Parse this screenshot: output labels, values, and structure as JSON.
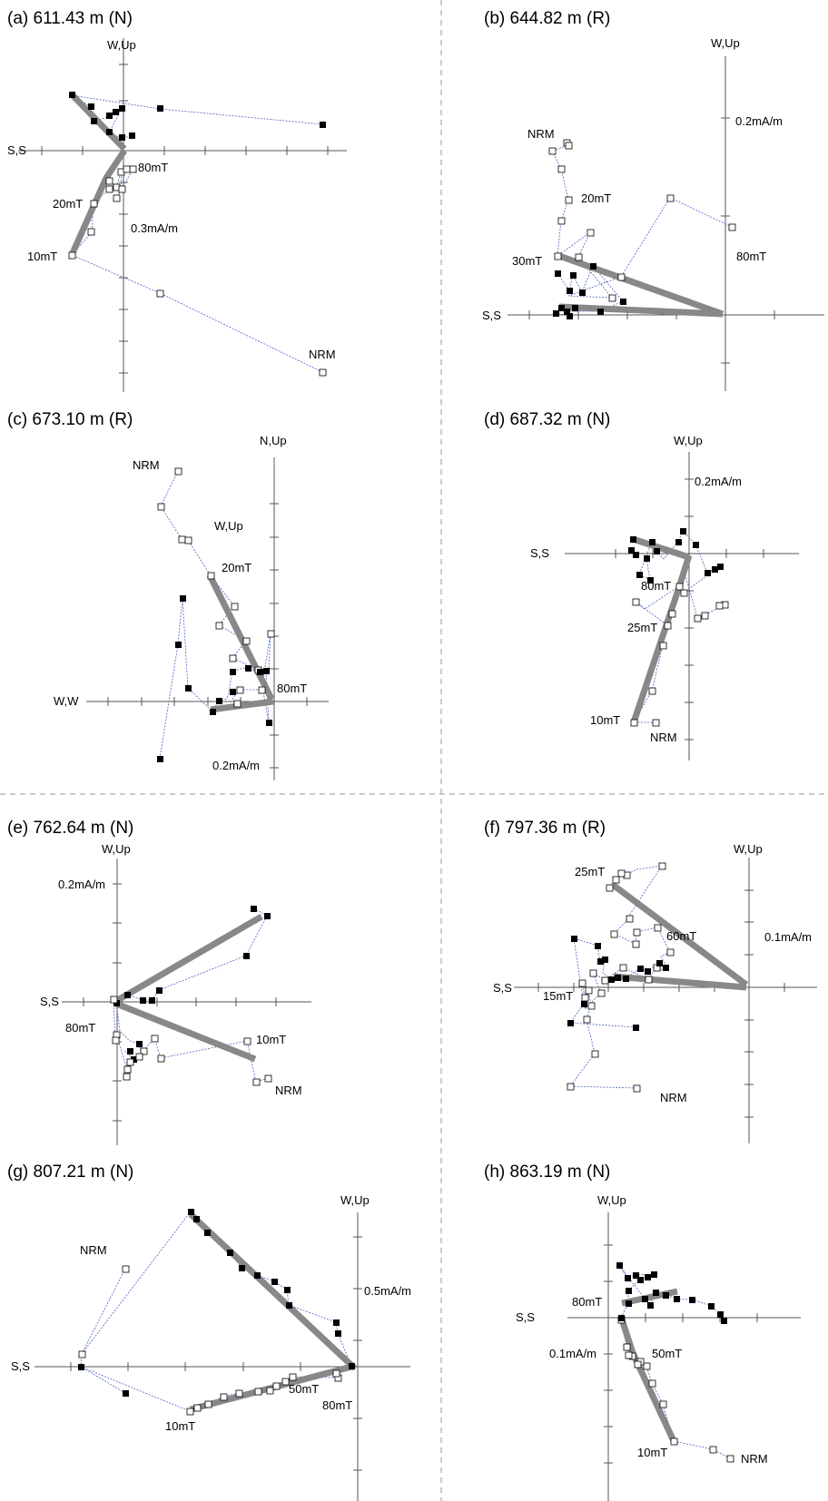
{
  "panels": [
    {
      "id": "a",
      "title": "(a) 611.43 m (N)",
      "axes": {
        "vertical": "W,Up",
        "horizontal": "S,S",
        "scale": "0.3mA/m"
      },
      "labels": [
        "80mT",
        "20mT",
        "10mT",
        "NRM"
      ],
      "chart_data": {
        "type": "scatter",
        "series": [
          {
            "values": [
              [
                -0.57,
                0.55
              ],
              [
                -0.36,
                0.05
              ],
              [
                -0.06,
                0.04
              ],
              [
                -0.02,
                0.01
              ],
              [
                -0.17,
                -0.07
              ],
              [
                -0.13,
                -0.21
              ],
              [
                -0.03,
                -0.14
              ],
              [
                0.03,
                -0.18
              ],
              [
                -0.25,
                -0.38
              ],
              [
                -0.16,
                -0.62
              ],
              [
                -0.33,
                -0.92
              ]
            ]
          },
          {
            "values": [
              [
                0.32,
                -0.36
              ],
              [
                -0.22,
                0.15
              ],
              [
                -0.12,
                0.12
              ],
              [
                -0.08,
                0.08
              ],
              [
                -0.05,
                0.07
              ],
              [
                -0.01,
                0.05
              ],
              [
                0.04,
                0.05
              ]
            ]
          }
        ]
      }
    },
    {
      "id": "b",
      "title": "(b) 644.82 m (R)",
      "axes": {
        "vertical": "W,Up",
        "horizontal": "S,S",
        "scale": "0.2mA/m"
      },
      "labels": [
        "NRM",
        "20mT",
        "30mT",
        "80mT"
      ]
    },
    {
      "id": "c",
      "title": "(c) 673.10 m (R)",
      "axes": {
        "vertical": "N,Up",
        "horizontal": "W,W",
        "scale": "0.2mA/m",
        "secondary": "W,Up"
      },
      "labels": [
        "NRM",
        "20mT",
        "80mT"
      ]
    },
    {
      "id": "d",
      "title": "(d) 687.32 m (N)",
      "axes": {
        "vertical": "W,Up",
        "horizontal": "S,S",
        "scale": "0.2mA/m"
      },
      "labels": [
        "80mT",
        "25mT",
        "10mT",
        "NRM"
      ]
    },
    {
      "id": "e",
      "title": "(e) 762.64 m (N)",
      "axes": {
        "vertical": "W,Up",
        "horizontal": "S,S",
        "scale": "0.2mA/m"
      },
      "labels": [
        "80mT",
        "10mT",
        "NRM"
      ]
    },
    {
      "id": "f",
      "title": "(f) 797.36 m (R)",
      "axes": {
        "vertical": "W,Up",
        "horizontal": "S,S",
        "scale": "0.1mA/m"
      },
      "labels": [
        "25mT",
        "60mT",
        "15mT",
        "NRM"
      ]
    },
    {
      "id": "g",
      "title": "(g) 807.21 m (N)",
      "axes": {
        "vertical": "W,Up",
        "horizontal": "S,S",
        "scale": "0.5mA/m"
      },
      "labels": [
        "NRM",
        "50mT",
        "80mT",
        "10mT"
      ]
    },
    {
      "id": "h",
      "title": "(h) 863.19 m (N)",
      "axes": {
        "vertical": "W,Up",
        "horizontal": "S,S",
        "scale": "0.1mA/m"
      },
      "labels": [
        "80mT",
        "50mT",
        "10mT",
        "NRM"
      ]
    }
  ],
  "style": {
    "line": "#4a62c4",
    "fit": "#888888",
    "divider": "#999999"
  }
}
